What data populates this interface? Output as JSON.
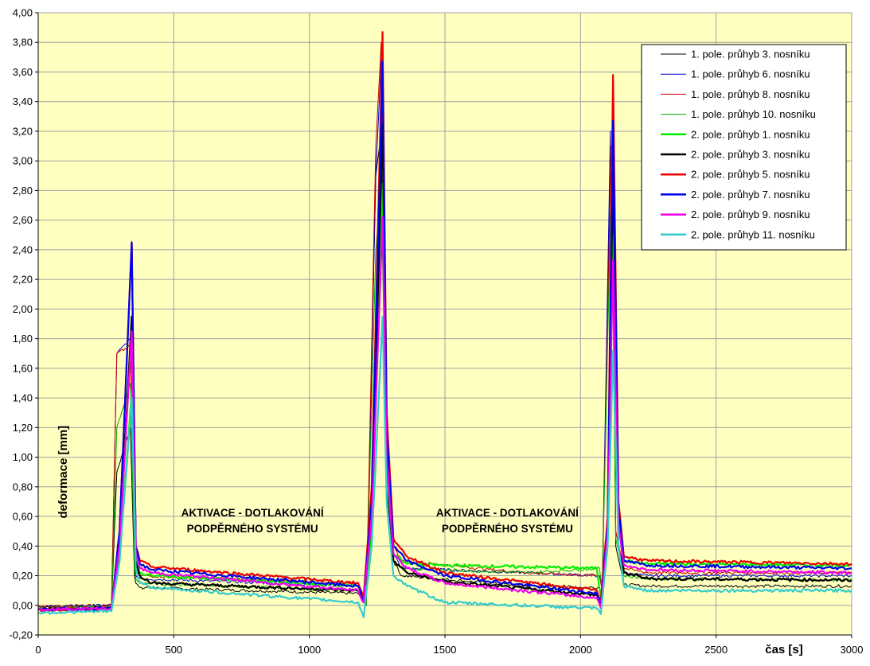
{
  "chart_data": {
    "type": "line",
    "xlabel": "čas [s]",
    "ylabel": "deformace [mm]",
    "xlim": [
      0,
      3000
    ],
    "ylim": [
      -0.2,
      4.0
    ],
    "x_ticks": [
      "0",
      "500",
      "1000",
      "1500",
      "2000",
      "2500",
      "3000"
    ],
    "y_ticks": [
      "-0,20",
      "0,00",
      "0,20",
      "0,40",
      "0,60",
      "0,80",
      "1,00",
      "1,20",
      "1,40",
      "1,60",
      "1,80",
      "2,00",
      "2,20",
      "2,40",
      "2,60",
      "2,80",
      "3,00",
      "3,20",
      "3,40",
      "3,60",
      "3,80",
      "4,00"
    ],
    "grid": true,
    "legend_position": "top-right",
    "plot_background": "#FFFFC0",
    "annotations": [
      {
        "lines": [
          "AKTIVACE - DOTLAKOVÁNÍ",
          "PODPĚRNÉHO SYSTÉMU"
        ],
        "x": 790,
        "y": 0.6
      },
      {
        "lines": [
          "AKTIVACE - DOTLAKOVÁNÍ",
          "PODPĚRNÉHO SYSTÉMU"
        ],
        "x": 1730,
        "y": 0.6
      }
    ],
    "series": [
      {
        "name": "1. pole. průhyb 3. nosníku",
        "color": "#000000",
        "thick": false,
        "x": [
          0,
          270,
          290,
          340,
          355,
          360,
          380,
          1180,
          1210,
          1245,
          1265,
          1285,
          1310,
          1340,
          1800,
          2070,
          2080,
          2110,
          2115,
          2130,
          2160,
          2250,
          3000
        ],
        "y": [
          -0.01,
          0.0,
          0.9,
          1.2,
          0.2,
          0.15,
          0.12,
          0.08,
          0.0,
          2.9,
          3.2,
          0.8,
          0.3,
          0.2,
          0.13,
          0.12,
          0.05,
          3.1,
          3.1,
          0.4,
          0.14,
          0.13,
          0.13
        ]
      },
      {
        "name": "1. pole. průhyb 6. nosníku",
        "color": "#0000CC",
        "thick": false,
        "x": [
          0,
          270,
          290,
          340,
          355,
          360,
          380,
          1180,
          1210,
          1245,
          1265,
          1285,
          1310,
          1340,
          1800,
          2070,
          2080,
          2110,
          2115,
          2130,
          2160,
          2250,
          3000
        ],
        "y": [
          -0.01,
          0.0,
          1.7,
          1.8,
          0.3,
          0.2,
          0.18,
          0.13,
          0.0,
          2.9,
          3.7,
          1.0,
          0.35,
          0.25,
          0.22,
          0.2,
          0.1,
          3.2,
          3.2,
          0.5,
          0.22,
          0.2,
          0.2
        ]
      },
      {
        "name": "1. pole. průhyb 8. nosníku",
        "color": "#CC0000",
        "thick": false,
        "x": [
          0,
          270,
          290,
          340,
          355,
          360,
          380,
          1180,
          1210,
          1245,
          1265,
          1285,
          1310,
          1340,
          1800,
          2070,
          2080,
          2110,
          2115,
          2130,
          2160,
          2250,
          3000
        ],
        "y": [
          -0.01,
          0.0,
          1.7,
          1.75,
          0.3,
          0.22,
          0.2,
          0.15,
          0.02,
          3.1,
          3.8,
          1.0,
          0.4,
          0.3,
          0.22,
          0.2,
          0.1,
          2.85,
          3.2,
          0.5,
          0.25,
          0.22,
          0.22
        ]
      },
      {
        "name": "1. pole. průhyb 10. nosníku",
        "color": "#00AA00",
        "thick": false,
        "x": [
          0,
          270,
          290,
          340,
          355,
          360,
          380,
          1180,
          1210,
          1245,
          1265,
          1285,
          1310,
          1340,
          1800,
          2070,
          2080,
          2110,
          2115,
          2130,
          2160,
          2250,
          3000
        ],
        "y": [
          -0.02,
          -0.01,
          1.2,
          1.5,
          0.25,
          0.18,
          0.15,
          0.1,
          0.0,
          2.4,
          2.8,
          0.9,
          0.3,
          0.25,
          0.22,
          0.25,
          0.1,
          2.6,
          2.8,
          0.45,
          0.2,
          0.18,
          0.17
        ]
      },
      {
        "name": "2. pole. průhyb 1. nosníku",
        "color": "#00EE00",
        "thick": true,
        "x": [
          0,
          270,
          300,
          345,
          360,
          375,
          420,
          1180,
          1200,
          1230,
          1270,
          1285,
          1310,
          1360,
          1500,
          2060,
          2075,
          2100,
          2120,
          2140,
          2160,
          2250,
          3000
        ],
        "y": [
          -0.03,
          -0.02,
          0.3,
          1.45,
          0.3,
          0.22,
          0.2,
          0.13,
          0.05,
          0.5,
          2.85,
          1.0,
          0.35,
          0.28,
          0.27,
          0.25,
          0.05,
          0.4,
          2.5,
          0.6,
          0.3,
          0.28,
          0.27
        ]
      },
      {
        "name": "2. pole. průhyb 3. nosníku",
        "color": "#000000",
        "thick": true,
        "x": [
          0,
          270,
          300,
          345,
          360,
          375,
          420,
          1180,
          1200,
          1230,
          1270,
          1285,
          1310,
          1360,
          1500,
          2060,
          2075,
          2100,
          2120,
          2140,
          2160,
          2250,
          3000
        ],
        "y": [
          -0.03,
          -0.02,
          0.4,
          1.95,
          0.3,
          0.2,
          0.15,
          0.1,
          0.02,
          0.6,
          3.25,
          1.1,
          0.3,
          0.22,
          0.16,
          0.07,
          0.0,
          0.5,
          3.0,
          0.6,
          0.22,
          0.18,
          0.17
        ]
      },
      {
        "name": "2. pole. průhyb 5. nosníku",
        "color": "#EE0000",
        "thick": true,
        "x": [
          0,
          270,
          300,
          345,
          360,
          375,
          420,
          1180,
          1200,
          1230,
          1270,
          1285,
          1310,
          1360,
          1500,
          2060,
          2075,
          2100,
          2120,
          2140,
          2160,
          2250,
          3000
        ],
        "y": [
          -0.03,
          -0.02,
          0.5,
          2.45,
          0.4,
          0.3,
          0.26,
          0.15,
          0.05,
          0.8,
          3.87,
          1.3,
          0.45,
          0.33,
          0.22,
          0.1,
          0.03,
          0.6,
          3.58,
          0.7,
          0.33,
          0.3,
          0.28
        ]
      },
      {
        "name": "2. pole. průhyb 7. nosníku",
        "color": "#0000EE",
        "thick": true,
        "x": [
          0,
          270,
          300,
          345,
          360,
          375,
          420,
          1180,
          1200,
          1230,
          1270,
          1285,
          1310,
          1360,
          1500,
          2060,
          2075,
          2100,
          2120,
          2140,
          2160,
          2250,
          3000
        ],
        "y": [
          -0.03,
          -0.02,
          0.5,
          2.45,
          0.4,
          0.28,
          0.24,
          0.13,
          0.03,
          0.7,
          3.67,
          1.2,
          0.4,
          0.3,
          0.2,
          0.08,
          0.0,
          0.55,
          3.27,
          0.65,
          0.3,
          0.27,
          0.25
        ]
      },
      {
        "name": "2. pole. průhyb 9. nosníku",
        "color": "#EE00EE",
        "thick": true,
        "x": [
          0,
          270,
          300,
          345,
          360,
          375,
          420,
          1180,
          1200,
          1230,
          1270,
          1285,
          1310,
          1360,
          1500,
          2060,
          2075,
          2100,
          2120,
          2140,
          2160,
          2250,
          3000
        ],
        "y": [
          -0.03,
          -0.02,
          0.4,
          1.85,
          0.35,
          0.25,
          0.22,
          0.1,
          0.02,
          0.6,
          2.62,
          1.0,
          0.35,
          0.25,
          0.15,
          0.05,
          -0.02,
          0.5,
          2.33,
          0.55,
          0.27,
          0.24,
          0.22
        ]
      },
      {
        "name": "2. pole. průhyb  11. nosníku",
        "color": "#33CCCC",
        "thick": true,
        "x": [
          0,
          270,
          300,
          345,
          360,
          375,
          420,
          1180,
          1200,
          1230,
          1270,
          1285,
          1310,
          1360,
          1500,
          2060,
          2075,
          2100,
          2120,
          2140,
          2160,
          2250,
          3000
        ],
        "y": [
          -0.05,
          -0.04,
          0.3,
          1.4,
          0.25,
          0.15,
          0.12,
          0.02,
          -0.08,
          0.4,
          1.95,
          0.7,
          0.2,
          0.13,
          0.02,
          -0.02,
          -0.06,
          0.4,
          1.72,
          0.4,
          0.13,
          0.1,
          0.1
        ]
      }
    ]
  }
}
